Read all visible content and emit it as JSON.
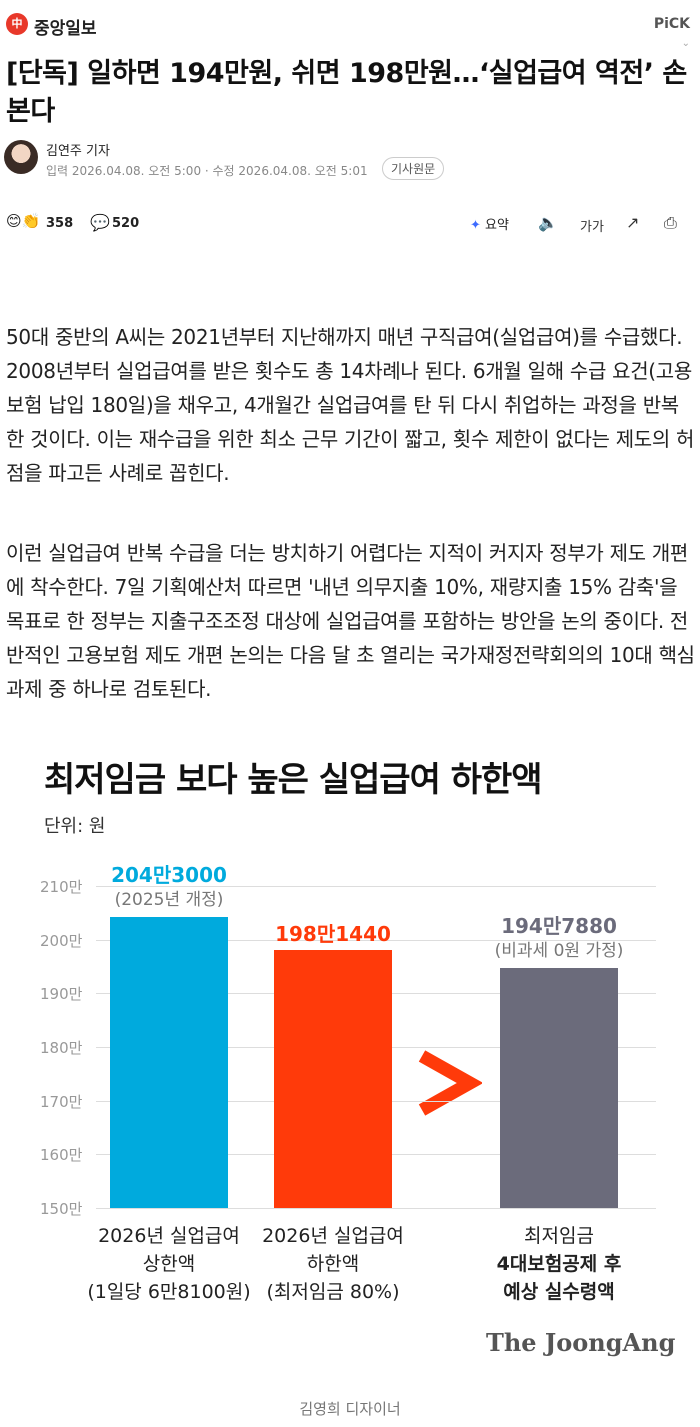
{
  "header": {
    "press_logo_text": "中",
    "press_name": "중앙일보",
    "pick_label": "PiCK"
  },
  "article": {
    "headline": "[단독] 일하면 194만원, 쉬면 198만원…‘실업급여 역전’ 손본다",
    "reporter": "김연주 기자",
    "dates": "입력 2026.04.08. 오전 5:00 · 수정 2026.04.08. 오전 5:01",
    "original_button": "기사원문",
    "reaction_count": "358",
    "comment_count": "520",
    "summary_label": "요약",
    "font_size_label": "가가",
    "paragraphs": [
      "50대 중반의 A씨는 2021년부터 지난해까지 매년 구직급여(실업급여)를 수급했다. 2008년부터 실업급여를 받은 횟수도 총 14차례나 된다. 6개월 일해 수급 요건(고용보험 납입 180일)을 채우고, 4개월간 실업급여를 탄 뒤 다시 취업하는 과정을 반복한 것이다. 이는 재수급을 위한 최소 근무 기간이 짧고, 횟수 제한이 없다는 제도의 허점을 파고든 사례로 꼽힌다.",
      "이런 실업급여 반복 수급을 더는 방치하기 어렵다는 지적이 커지자 정부가 제도 개편에 착수한다. 7일 기획예산처 따르면 '내년 의무지출 10%, 재량지출 15% 감축'을 목표로 한 정부는 지출구조조정 대상에 실업급여를 포함하는 방안을 논의 중이다. 전반적인 고용보험 제도 개편 논의는 다음 달 초 열리는 국가재정전략회의의 10대 핵심 과제 중 하나로 검토된다."
    ],
    "image_credit": "김영희 디자이너"
  },
  "chart_data": {
    "type": "bar",
    "title": "최저임금 보다 높은 실업급여 하한액",
    "unit_label": "단위: 원",
    "ylim": [
      1500000,
      2100000
    ],
    "y_ticks": [
      "210만",
      "200만",
      "190만",
      "180만",
      "170만",
      "160만",
      "150만"
    ],
    "grid": true,
    "bars": [
      {
        "value": 2043000,
        "value_label": "204만3000",
        "sub_label": "(2025년 개정)",
        "category_lines": [
          "2026년 실업급여",
          "상한액",
          "(1일당 6만8100원)"
        ],
        "color": "#00aadd",
        "label_color": "#00aadd"
      },
      {
        "value": 1981440,
        "value_label": "198만1440",
        "sub_label": "",
        "category_lines": [
          "2026년 실업급여",
          "하한액",
          "(최저임금 80%)"
        ],
        "color": "#ff3a0a",
        "label_color": "#ff3a0a"
      },
      {
        "value": 1947880,
        "value_label": "194만7880",
        "sub_label": "(비과세 0원 가정)",
        "category_lines": [
          "최저임금",
          "4대보험공제 후",
          "예상 실수령액"
        ],
        "color": "#6b6b7b",
        "label_color": "#6b6b7b"
      }
    ],
    "comparison_symbol": ">",
    "brand": "The JoongAng"
  }
}
